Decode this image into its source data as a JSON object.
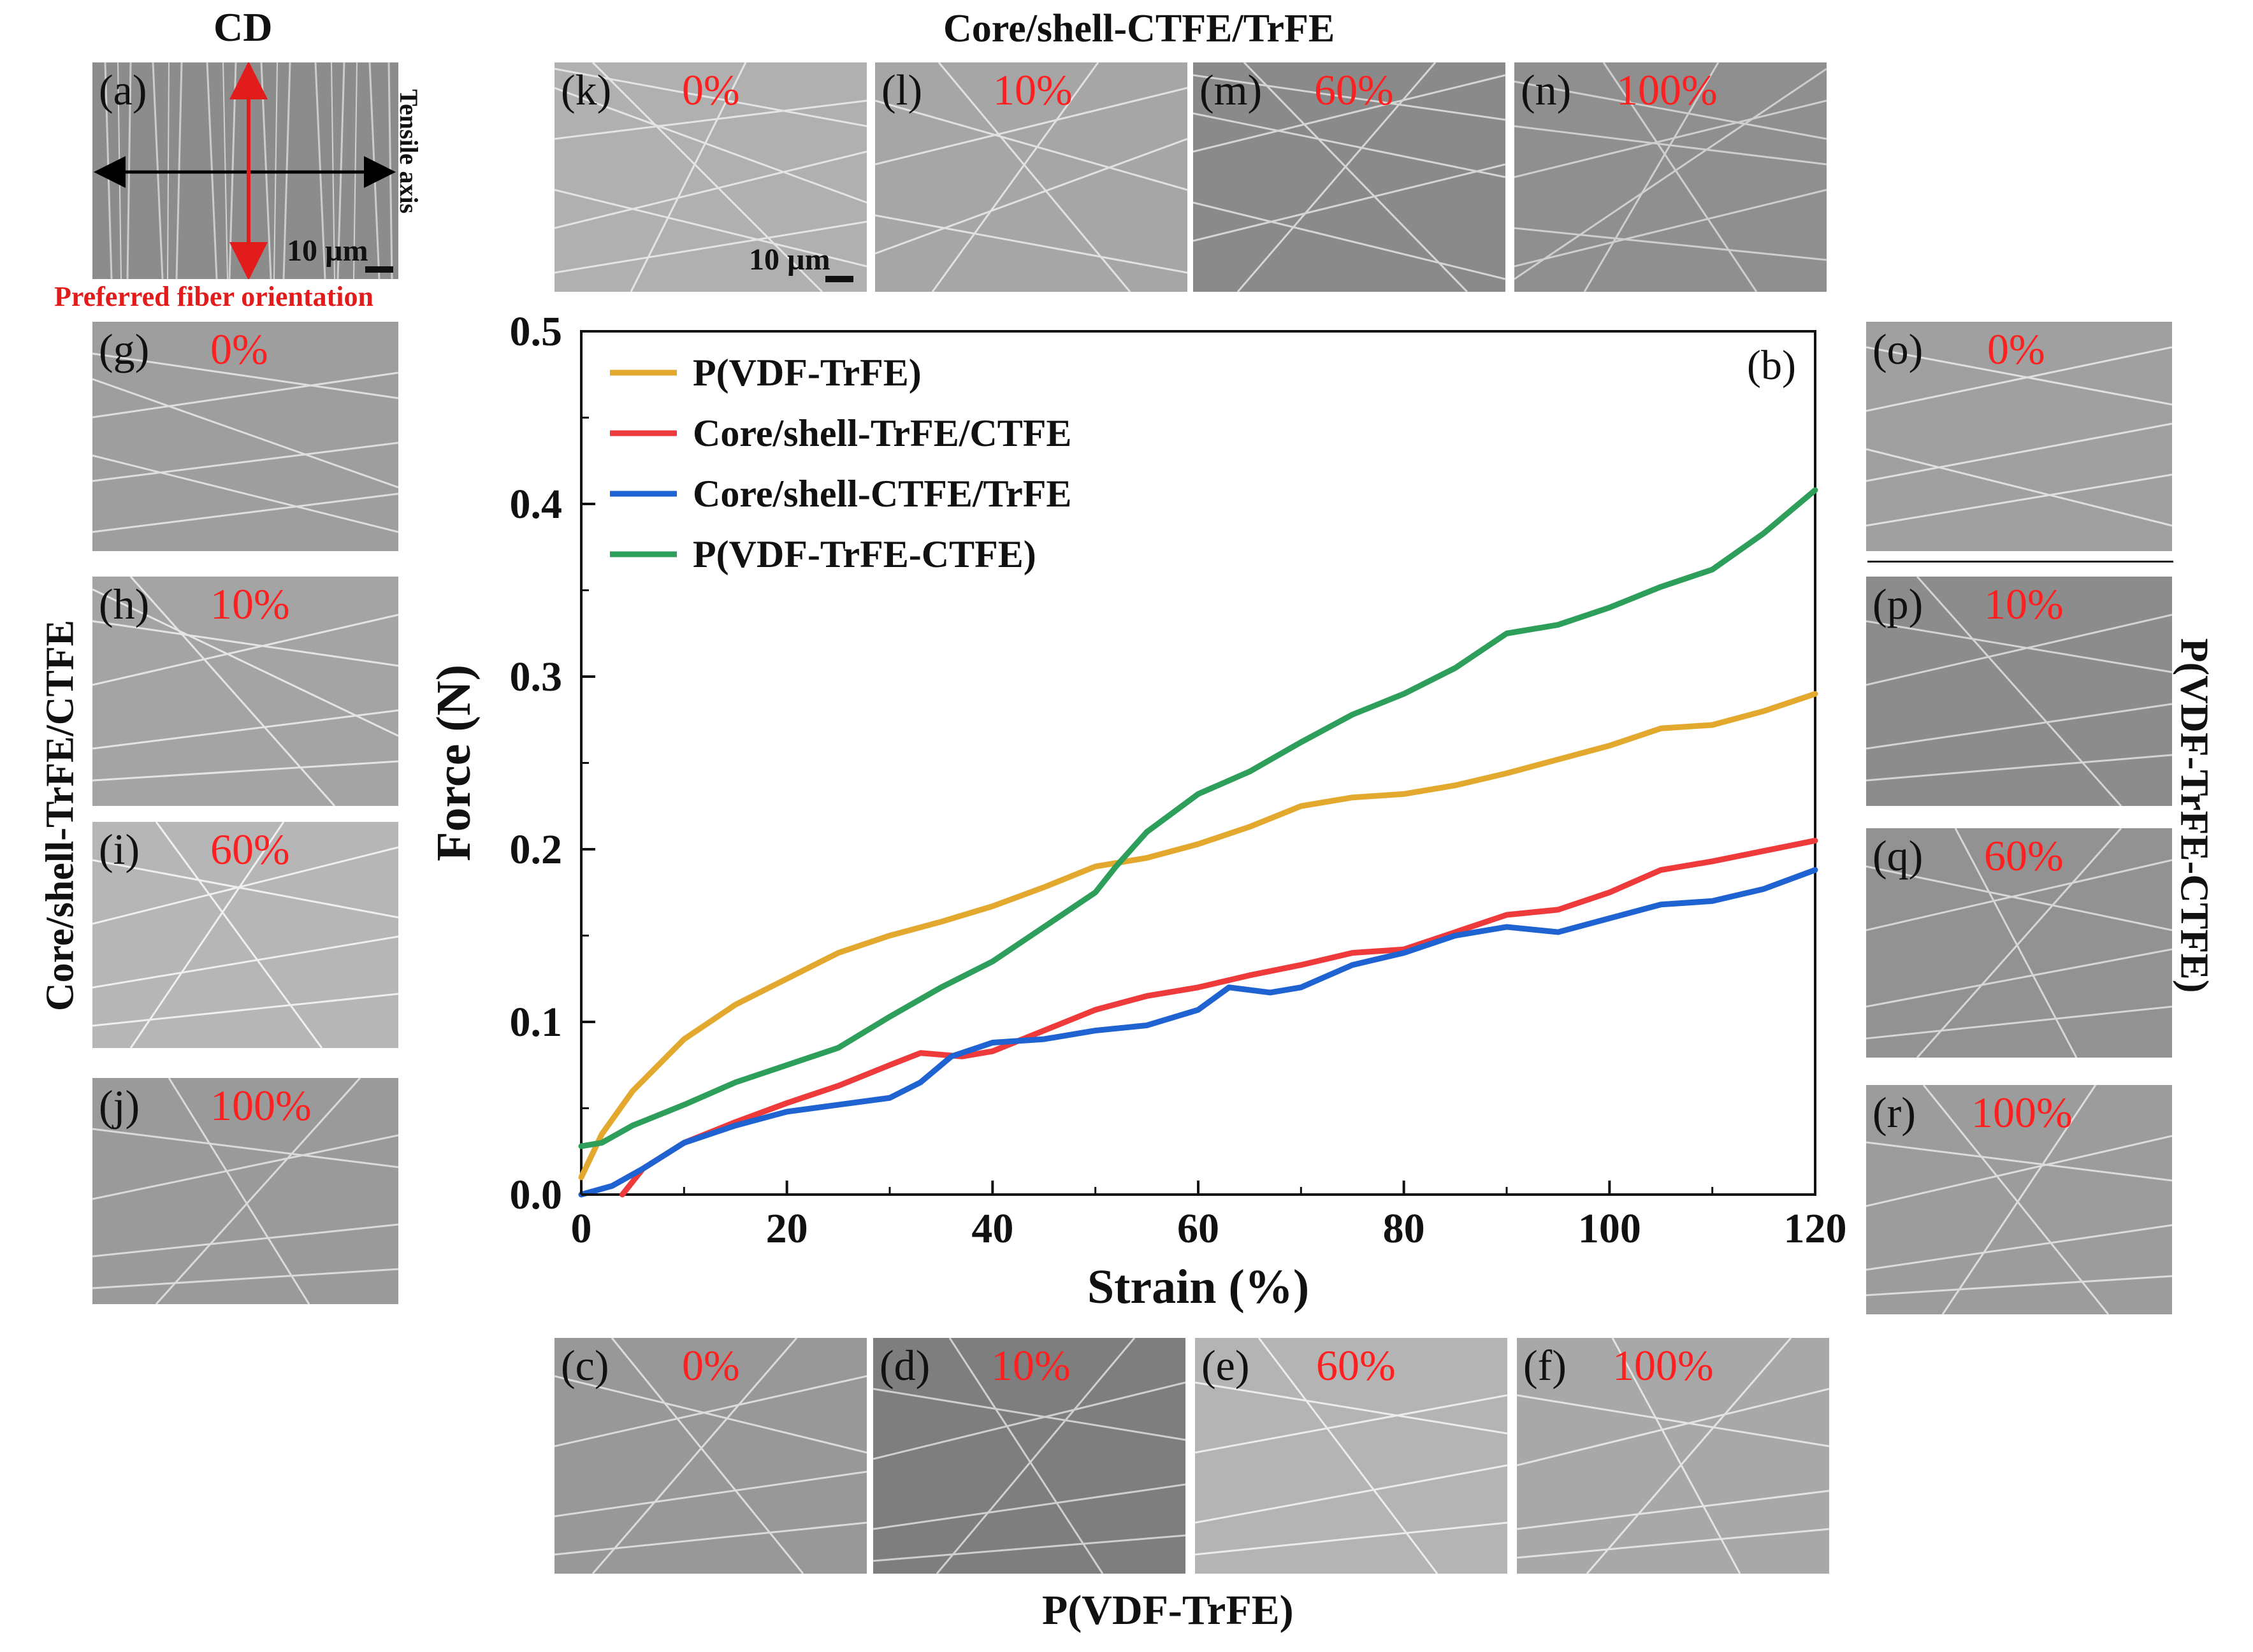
{
  "figure": {
    "cd_heading": "CD",
    "top_heading": "Core/shell-CTFE/TrFE",
    "bottom_heading": "P(VDF-TrFE)",
    "left_vertical_label": "Core/shell-TrFE/CTFE",
    "right_vertical_label": "P(VDF-TrFE-CTFE)",
    "tensile_axis_label": "Tensile axis",
    "preferred_orientation_label": "Preferred fiber orientation",
    "scale_bar_label": "10 µm"
  },
  "panels": {
    "a": {
      "letter": "(a)"
    },
    "c": {
      "letter": "(c)",
      "strain": "0%"
    },
    "d": {
      "letter": "(d)",
      "strain": "10%"
    },
    "e": {
      "letter": "(e)",
      "strain": "60%"
    },
    "f": {
      "letter": "(f)",
      "strain": "100%"
    },
    "g": {
      "letter": "(g)",
      "strain": "0%"
    },
    "h": {
      "letter": "(h)",
      "strain": "10%"
    },
    "i": {
      "letter": "(i)",
      "strain": "60%"
    },
    "j": {
      "letter": "(j)",
      "strain": "100%"
    },
    "k": {
      "letter": "(k)",
      "strain": "0%"
    },
    "l": {
      "letter": "(l)",
      "strain": "10%"
    },
    "m": {
      "letter": "(m)",
      "strain": "60%"
    },
    "n": {
      "letter": "(n)",
      "strain": "100%"
    },
    "o": {
      "letter": "(o)",
      "strain": "0%"
    },
    "p": {
      "letter": "(p)",
      "strain": "10%"
    },
    "q": {
      "letter": "(q)",
      "strain": "60%"
    },
    "r": {
      "letter": "(r)",
      "strain": "100%"
    }
  },
  "chart_data": {
    "type": "line",
    "panel_label": "(b)",
    "xlabel": "Strain (%)",
    "ylabel": "Force (N)",
    "xlim": [
      0,
      120
    ],
    "ylim": [
      0,
      0.5
    ],
    "xticks": [
      0,
      20,
      40,
      60,
      80,
      100,
      120
    ],
    "xtick_labels": [
      "0",
      "20",
      "40",
      "60",
      "80",
      "100",
      "120"
    ],
    "yticks": [
      0,
      0.1,
      0.2,
      0.3,
      0.4,
      0.5
    ],
    "ytick_labels": [
      "0.0",
      "0.1",
      "0.2",
      "0.3",
      "0.4",
      "0.5"
    ],
    "legend_position": "top-left",
    "series": [
      {
        "name": "P(VDF-TrFE)",
        "color": "#e3a92e",
        "x": [
          0,
          2,
          5,
          10,
          15,
          20,
          25,
          30,
          35,
          40,
          45,
          50,
          55,
          60,
          65,
          70,
          75,
          80,
          85,
          90,
          95,
          100,
          105,
          110,
          115,
          120
        ],
        "y": [
          0.01,
          0.035,
          0.06,
          0.09,
          0.11,
          0.125,
          0.14,
          0.15,
          0.158,
          0.167,
          0.178,
          0.19,
          0.195,
          0.203,
          0.213,
          0.225,
          0.23,
          0.232,
          0.237,
          0.244,
          0.252,
          0.26,
          0.27,
          0.272,
          0.28,
          0.29
        ]
      },
      {
        "name": "Core/shell-TrFE/CTFE",
        "color": "#ee3a3a",
        "x": [
          4,
          6,
          10,
          15,
          20,
          25,
          30,
          33,
          37,
          40,
          45,
          50,
          55,
          60,
          65,
          70,
          75,
          80,
          85,
          90,
          95,
          100,
          105,
          110,
          115,
          120
        ],
        "y": [
          0.0,
          0.015,
          0.03,
          0.042,
          0.053,
          0.063,
          0.075,
          0.082,
          0.08,
          0.083,
          0.095,
          0.107,
          0.115,
          0.12,
          0.127,
          0.133,
          0.14,
          0.142,
          0.152,
          0.162,
          0.165,
          0.175,
          0.188,
          0.193,
          0.199,
          0.205
        ]
      },
      {
        "name": "Core/shell-CTFE/TrFE",
        "color": "#1f62d1",
        "x": [
          0,
          3,
          6,
          10,
          15,
          20,
          25,
          30,
          33,
          36,
          40,
          45,
          50,
          55,
          60,
          63,
          67,
          70,
          75,
          80,
          85,
          90,
          95,
          100,
          105,
          110,
          115,
          120
        ],
        "y": [
          0.0,
          0.005,
          0.015,
          0.03,
          0.04,
          0.048,
          0.052,
          0.056,
          0.065,
          0.08,
          0.088,
          0.09,
          0.095,
          0.098,
          0.107,
          0.12,
          0.117,
          0.12,
          0.133,
          0.14,
          0.15,
          0.155,
          0.152,
          0.16,
          0.168,
          0.17,
          0.177,
          0.188
        ]
      },
      {
        "name": "P(VDF-TrFE-CTFE)",
        "color": "#2e9e5b",
        "x": [
          0,
          2,
          5,
          10,
          15,
          20,
          25,
          30,
          35,
          40,
          45,
          50,
          52,
          55,
          60,
          65,
          70,
          75,
          80,
          85,
          90,
          95,
          100,
          105,
          110,
          115,
          120
        ],
        "y": [
          0.028,
          0.03,
          0.04,
          0.052,
          0.065,
          0.075,
          0.085,
          0.103,
          0.12,
          0.135,
          0.155,
          0.175,
          0.19,
          0.21,
          0.232,
          0.245,
          0.262,
          0.278,
          0.29,
          0.305,
          0.325,
          0.33,
          0.34,
          0.352,
          0.362,
          0.383,
          0.408
        ]
      }
    ]
  }
}
